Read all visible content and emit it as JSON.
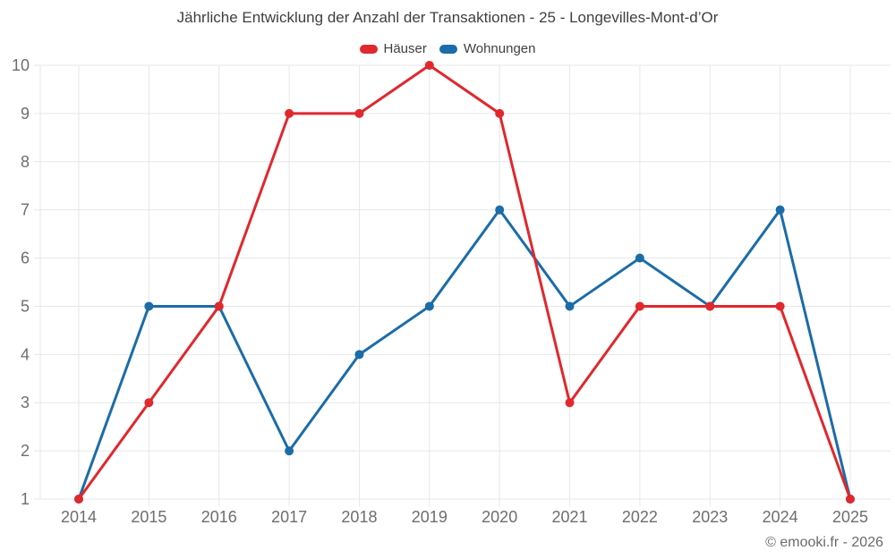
{
  "chart_data": {
    "type": "line",
    "title": "Jährliche Entwicklung der Anzahl der Transaktionen - 25 - Longevilles-Mont-d’Or",
    "categories": [
      "2014",
      "2015",
      "2016",
      "2017",
      "2018",
      "2019",
      "2020",
      "2021",
      "2022",
      "2023",
      "2024",
      "2025"
    ],
    "series": [
      {
        "name": "Häuser",
        "color": "#e0282d",
        "values": [
          1,
          3,
          5,
          9,
          9,
          10,
          9,
          3,
          5,
          5,
          5,
          1
        ]
      },
      {
        "name": "Wohnungen",
        "color": "#1b6ca8",
        "values": [
          1,
          5,
          5,
          2,
          4,
          5,
          7,
          5,
          6,
          5,
          7,
          1
        ]
      }
    ],
    "ylim": [
      1,
      10
    ],
    "yticks": [
      1,
      2,
      3,
      4,
      5,
      6,
      7,
      8,
      9,
      10
    ],
    "grid": true,
    "legend_position": "top"
  },
  "footer": {
    "copyright": "© emooki.fr - 2026"
  }
}
